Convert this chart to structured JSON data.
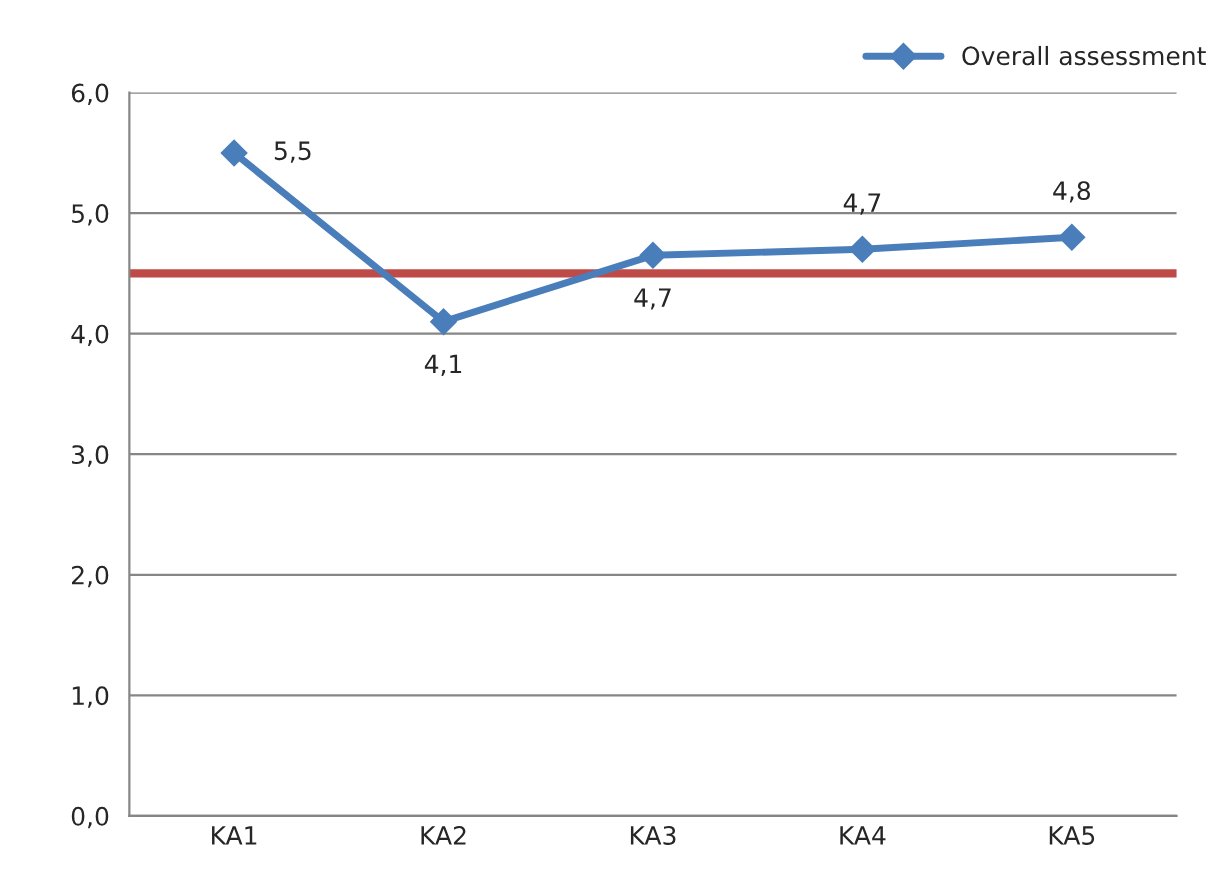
{
  "chart_data": {
    "type": "line",
    "categories": [
      "KA1",
      "KA2",
      "KA3",
      "KA4",
      "KA5"
    ],
    "series": [
      {
        "name": "Overall assessment",
        "color": "#4a7ebb",
        "values": [
          5.5,
          4.1,
          4.65,
          4.7,
          4.8
        ],
        "value_labels": [
          "5,5",
          "4,1",
          "4,7",
          "4,7",
          "4,8"
        ]
      }
    ],
    "ylim": [
      0,
      6
    ],
    "yticks": [
      {
        "value": 0,
        "label": "0,0"
      },
      {
        "value": 1,
        "label": "1,0"
      },
      {
        "value": 2,
        "label": "2,0"
      },
      {
        "value": 3,
        "label": "3,0"
      },
      {
        "value": 4,
        "label": "4,0"
      },
      {
        "value": 5,
        "label": "5,0"
      },
      {
        "value": 6,
        "label": "6,0"
      }
    ],
    "ref_lines": [
      {
        "axis": "y",
        "value": 4.5,
        "color": "#be4b48"
      }
    ],
    "grid": "y",
    "legend": "top right",
    "marker": "diamond",
    "line_style": "solid"
  }
}
